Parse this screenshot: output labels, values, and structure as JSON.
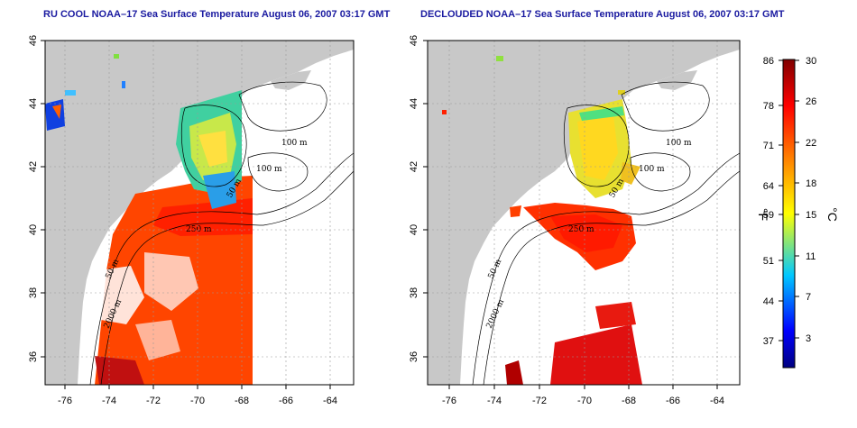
{
  "map_left": {
    "title": "RU COOL NOAA–17 Sea Surface Temperature August 06, 2007 03:17 GMT",
    "x_ticks": [
      "-76",
      "-74",
      "-72",
      "-70",
      "-68",
      "-66",
      "-64"
    ],
    "y_ticks": [
      "36",
      "38",
      "40",
      "42",
      "44",
      "46"
    ],
    "contour_labels": [
      "100 m",
      "100 m",
      "50 m",
      "250 m",
      "50 m",
      "2000 m"
    ]
  },
  "map_right": {
    "title": "DECLOUDED NOAA–17 Sea Surface Temperature August 06, 2007 03:17 GMT",
    "x_ticks": [
      "-76",
      "-74",
      "-72",
      "-70",
      "-68",
      "-66",
      "-64"
    ],
    "y_ticks": [
      "36",
      "38",
      "40",
      "42",
      "44",
      "46"
    ],
    "contour_labels": [
      "100 m",
      "100 m",
      "50 m",
      "250 m",
      "50 m",
      "2000 m"
    ]
  },
  "colorbar": {
    "f_ticks": [
      "86",
      "78",
      "71",
      "64",
      "59",
      "51",
      "44",
      "37"
    ],
    "c_ticks": [
      "30",
      "26",
      "22",
      "18",
      "15",
      "11",
      "7",
      "3"
    ],
    "f_unit": "°F",
    "c_unit": "°C",
    "colors": [
      "#000080",
      "#0000ff",
      "#00c8ff",
      "#ffff00",
      "#ff8000",
      "#ff0000",
      "#800000"
    ]
  },
  "colors": {
    "land": "#c8c8c8",
    "ocean": "#ffffff",
    "title": "#1a1aa0"
  }
}
